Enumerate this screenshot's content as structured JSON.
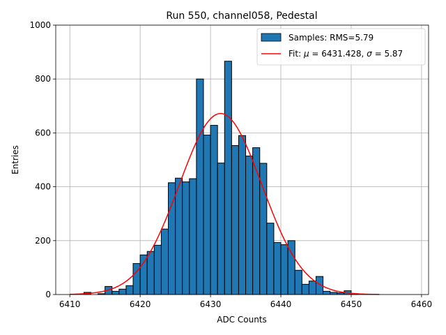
{
  "chart_data": {
    "type": "bar",
    "title": "Run 550, channel058, Pedestal",
    "xlabel": "ADC Counts",
    "ylabel": "Entries",
    "xlim": [
      6408,
      6461
    ],
    "ylim": [
      0,
      1000
    ],
    "xticks": [
      6410,
      6420,
      6430,
      6440,
      6450,
      6460
    ],
    "yticks": [
      0,
      200,
      400,
      600,
      800,
      1000
    ],
    "grid": true,
    "legend_position": "top-right",
    "bin_width": 1,
    "bins": [
      {
        "x": 6410,
        "value": 0
      },
      {
        "x": 6411,
        "value": 0
      },
      {
        "x": 6412,
        "value": 8
      },
      {
        "x": 6413,
        "value": 0
      },
      {
        "x": 6414,
        "value": 3
      },
      {
        "x": 6415,
        "value": 30
      },
      {
        "x": 6416,
        "value": 12
      },
      {
        "x": 6417,
        "value": 20
      },
      {
        "x": 6418,
        "value": 33
      },
      {
        "x": 6419,
        "value": 115
      },
      {
        "x": 6420,
        "value": 147
      },
      {
        "x": 6421,
        "value": 160
      },
      {
        "x": 6422,
        "value": 183
      },
      {
        "x": 6423,
        "value": 243
      },
      {
        "x": 6424,
        "value": 415
      },
      {
        "x": 6425,
        "value": 432
      },
      {
        "x": 6426,
        "value": 418
      },
      {
        "x": 6427,
        "value": 430
      },
      {
        "x": 6428,
        "value": 800
      },
      {
        "x": 6429,
        "value": 592
      },
      {
        "x": 6430,
        "value": 628
      },
      {
        "x": 6431,
        "value": 488
      },
      {
        "x": 6432,
        "value": 866
      },
      {
        "x": 6433,
        "value": 553
      },
      {
        "x": 6434,
        "value": 590
      },
      {
        "x": 6435,
        "value": 514
      },
      {
        "x": 6436,
        "value": 545
      },
      {
        "x": 6437,
        "value": 487
      },
      {
        "x": 6438,
        "value": 265
      },
      {
        "x": 6439,
        "value": 193
      },
      {
        "x": 6440,
        "value": 185
      },
      {
        "x": 6441,
        "value": 200
      },
      {
        "x": 6442,
        "value": 90
      },
      {
        "x": 6443,
        "value": 38
      },
      {
        "x": 6444,
        "value": 50
      },
      {
        "x": 6445,
        "value": 67
      },
      {
        "x": 6446,
        "value": 12
      },
      {
        "x": 6447,
        "value": 8
      },
      {
        "x": 6448,
        "value": 6
      },
      {
        "x": 6449,
        "value": 14
      },
      {
        "x": 6450,
        "value": 3
      }
    ],
    "series": [
      {
        "name": "Samples: RMS=5.79",
        "kind": "histogram",
        "color": "#1f77b4",
        "edge_color": "#000000"
      },
      {
        "name_prefix": "Fit: ",
        "mu_symbol": "μ",
        "mu_text": " = 6431.428, ",
        "sigma_symbol": "σ",
        "sigma_text": " = 5.87",
        "kind": "gaussian-fit",
        "color": "#ff0000",
        "mu": 6431.428,
        "sigma": 5.87,
        "amplitude": 672,
        "x_range": [
          6410,
          6454
        ]
      }
    ]
  }
}
